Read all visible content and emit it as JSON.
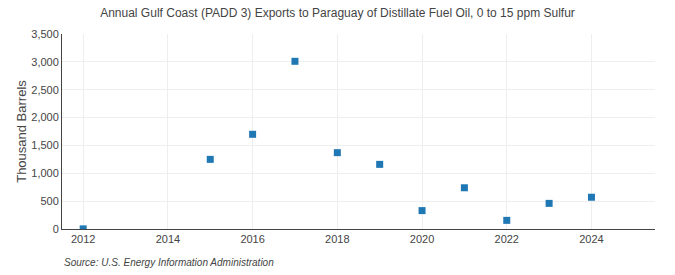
{
  "chart_data": {
    "type": "scatter",
    "title": "Annual Gulf Coast (PADD 3) Exports to Paraguay of Distillate Fuel Oil, 0 to 15 ppm Sulfur",
    "y_label": "Thousand Barrels",
    "annotations": [
      "Source: U.S. Energy Information Administration"
    ],
    "x": [
      2012,
      2015,
      2016,
      2017,
      2018,
      2019,
      2020,
      2021,
      2022,
      2023,
      2024
    ],
    "values": [
      2,
      1250,
      1700,
      3010,
      1370,
      1160,
      330,
      740,
      155,
      460,
      570
    ],
    "marker": "square",
    "xlim": [
      2011.5,
      2025.5
    ],
    "xticks": [
      2012,
      2014,
      2016,
      2018,
      2020,
      2022,
      2024
    ],
    "ylim": [
      0,
      3500
    ],
    "yticks": [
      0,
      500,
      {
        "value": 1000,
        "label": "1,000"
      },
      {
        "value": 1500,
        "label": "1,500"
      },
      {
        "value": 2000,
        "label": "2,000"
      },
      {
        "value": 2500,
        "label": "2,500"
      },
      {
        "value": 3000,
        "label": "3,000"
      },
      {
        "value": 3500,
        "label": "3,500"
      }
    ],
    "grid": true
  }
}
